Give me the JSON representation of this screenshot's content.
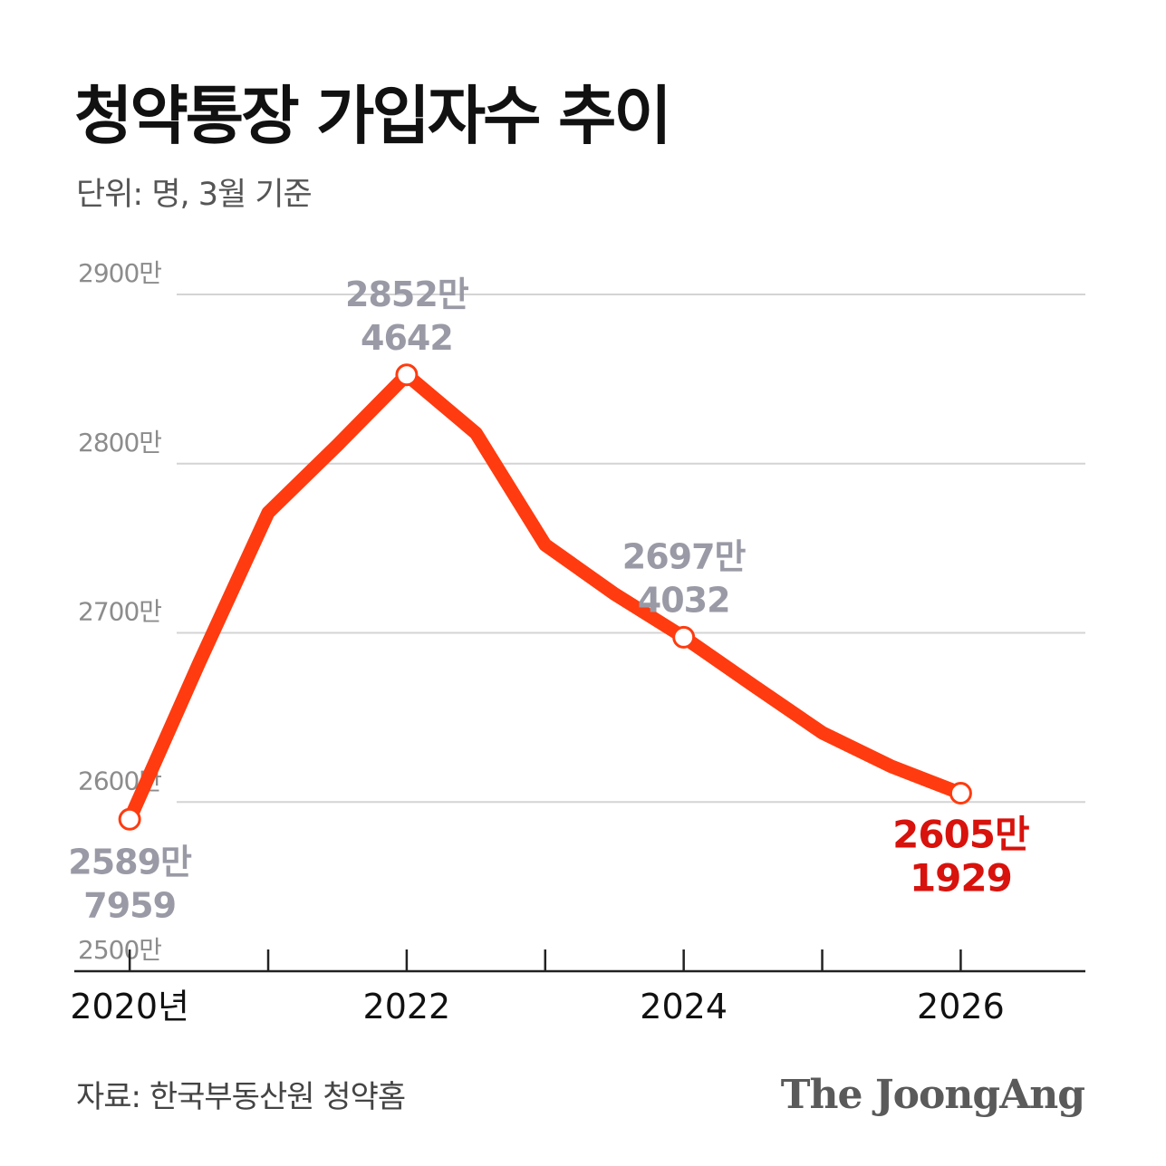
{
  "header": {
    "title": "청약통장 가입자수 추이",
    "subtitle": "단위: 명, 3월 기준"
  },
  "footer": {
    "source": "자료: 한국부동산원 청약홈",
    "logo": "The JoongAng"
  },
  "colors": {
    "line": "#ff3b0f",
    "grid": "#d4d4d4",
    "axis": "#222222",
    "label_gray": "#9a9aa6",
    "label_highlight": "#d8120c"
  },
  "chart_data": {
    "type": "line",
    "title": "청약통장 가입자수 추이",
    "unit_note": "단위: 명, 3월 기준",
    "x": [
      2020,
      2020.5,
      2021,
      2021.5,
      2022,
      2022.5,
      2023,
      2023.5,
      2024,
      2024.5,
      2025,
      2025.5,
      2026
    ],
    "values": [
      25897959,
      26820000,
      27710000,
      28110000,
      28524642,
      28180000,
      27520000,
      27230000,
      26974032,
      26690000,
      26410000,
      26210000,
      26051929
    ],
    "ylim": [
      25000000,
      29000000
    ],
    "xlim": [
      2019.6,
      2026.9
    ],
    "yticks": [
      {
        "value": 29000000,
        "label": "2900만"
      },
      {
        "value": 28000000,
        "label": "2800만"
      },
      {
        "value": 27000000,
        "label": "2700만"
      },
      {
        "value": 26000000,
        "label": "2600만"
      },
      {
        "value": 25000000,
        "label": "2500만"
      }
    ],
    "xticks": [
      {
        "value": 2020,
        "label": "2020년"
      },
      {
        "value": 2021,
        "label": ""
      },
      {
        "value": 2022,
        "label": "2022"
      },
      {
        "value": 2023,
        "label": ""
      },
      {
        "value": 2024,
        "label": "2024"
      },
      {
        "value": 2025,
        "label": ""
      },
      {
        "value": 2026,
        "label": "2026"
      }
    ],
    "markers": [
      {
        "x": 2020,
        "value": 25897959,
        "line1": "2589만",
        "line2": "7959",
        "position": "below",
        "highlight": false
      },
      {
        "x": 2022,
        "value": 28524642,
        "line1": "2852만",
        "line2": "4642",
        "position": "above",
        "highlight": false
      },
      {
        "x": 2024,
        "value": 26974032,
        "line1": "2697만",
        "line2": "4032",
        "position": "above",
        "highlight": false
      },
      {
        "x": 2026,
        "value": 26051929,
        "line1": "2605만",
        "line2": "1929",
        "position": "below",
        "highlight": true
      }
    ]
  }
}
